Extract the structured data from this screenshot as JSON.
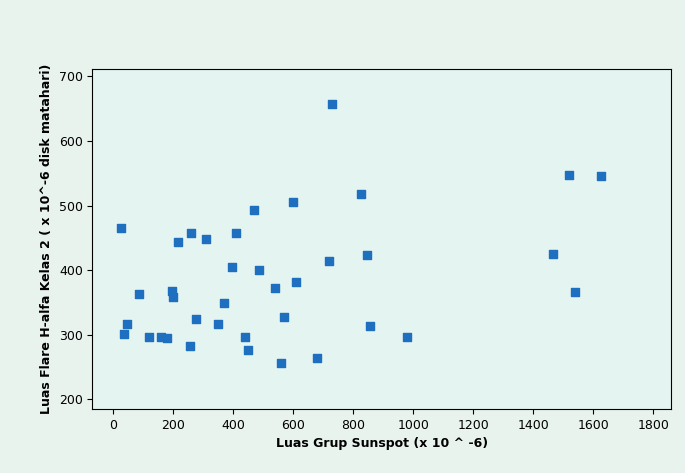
{
  "chart_data": {
    "type": "scatter",
    "x_label": "Luas Grup Sunspot (x 10 ^ -6)",
    "y_label": "Luas Flare H-alfa Kelas 2 ( x 10^-6 disk matahari)",
    "x": [
      25,
      35,
      45,
      85,
      120,
      160,
      180,
      195,
      200,
      215,
      255,
      260,
      275,
      310,
      350,
      370,
      395,
      410,
      440,
      450,
      470,
      485,
      540,
      560,
      570,
      600,
      610,
      680,
      720,
      730,
      825,
      845,
      855,
      980,
      1465,
      1520,
      1540,
      1625
    ],
    "values": [
      466,
      302,
      317,
      363,
      297,
      297,
      295,
      368,
      358,
      443,
      283,
      457,
      324,
      449,
      317,
      350,
      405,
      457,
      297,
      276,
      493,
      400,
      372,
      256,
      327,
      505,
      382,
      264,
      415,
      657,
      518,
      423,
      314,
      297,
      425,
      548,
      366,
      546
    ],
    "color": "#1f6fc0",
    "marker": "square",
    "xlim": [
      -70,
      1860
    ],
    "xticks": [
      0,
      200,
      400,
      600,
      800,
      1000,
      1200,
      1400,
      1600,
      1800
    ],
    "ylim": [
      185,
      712
    ],
    "yticks": [
      200,
      300,
      400,
      500,
      600,
      700
    ],
    "grid": false
  }
}
